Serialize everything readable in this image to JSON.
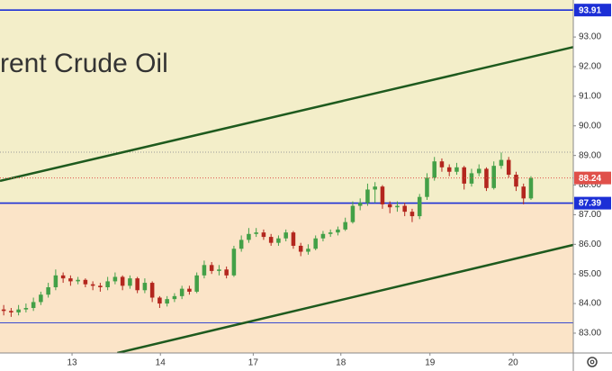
{
  "chart_data": {
    "type": "candlestick",
    "watermark": "Brent Crude Oil",
    "x": [
      0.5,
      1.5,
      2.5,
      3.5,
      4.5,
      5.5,
      6.5,
      7.5,
      8.5,
      9.5,
      10.5,
      11.5,
      12.5,
      13.5,
      14.5,
      15.5,
      16.5,
      17.5,
      18.5,
      19.5,
      20.5,
      21.5,
      22.5,
      23.5,
      24.5,
      25.5,
      26.5,
      27.5,
      28.5,
      29.5,
      30.5,
      31.5,
      32.5,
      33.5,
      34.5,
      35.5,
      36.5,
      37.5,
      38.5,
      39.5,
      40.5,
      41.5,
      42.5,
      43.5,
      44.5,
      45.5,
      46.5,
      47.5,
      48.5,
      49.5,
      50.5,
      51.5,
      52.5,
      53.5,
      54.5,
      55.5,
      56.5,
      57.5,
      58.5,
      59.5,
      60.5,
      61.5,
      62.5,
      63.5,
      64.5,
      65.5,
      66.5,
      67.5,
      68.5,
      69.5,
      70.5,
      71.5
    ],
    "open": [
      83.8,
      83.75,
      83.7,
      83.8,
      83.85,
      84.05,
      84.3,
      84.55,
      84.95,
      84.85,
      84.75,
      84.8,
      84.65,
      84.6,
      84.55,
      84.75,
      84.9,
      84.6,
      84.85,
      84.45,
      84.7,
      84.2,
      84.0,
      84.15,
      84.25,
      84.5,
      84.4,
      84.95,
      85.3,
      85.1,
      85.15,
      84.95,
      85.85,
      86.15,
      86.35,
      86.4,
      86.25,
      86.05,
      86.2,
      86.4,
      85.95,
      85.75,
      85.85,
      86.2,
      86.35,
      86.4,
      86.5,
      86.75,
      87.3,
      87.4,
      87.85,
      87.95,
      87.35,
      87.25,
      87.3,
      87.1,
      86.95,
      87.6,
      88.25,
      88.8,
      88.6,
      88.45,
      88.6,
      88.05,
      88.4,
      88.55,
      87.9,
      88.65,
      88.85,
      88.35,
      87.95,
      87.55
    ],
    "high": [
      83.95,
      83.85,
      83.95,
      84.0,
      84.2,
      84.4,
      84.7,
      85.15,
      85.05,
      84.95,
      84.9,
      84.85,
      84.75,
      84.7,
      84.9,
      85.05,
      84.95,
      84.95,
      84.9,
      84.85,
      84.75,
      84.25,
      84.25,
      84.35,
      84.6,
      84.6,
      85.05,
      85.45,
      85.4,
      85.3,
      85.25,
      85.95,
      86.3,
      86.55,
      86.55,
      86.5,
      86.35,
      86.3,
      86.5,
      86.45,
      86.05,
      86.0,
      86.3,
      86.45,
      86.5,
      86.6,
      86.9,
      87.45,
      87.55,
      88.05,
      88.1,
      88.0,
      87.45,
      87.45,
      87.4,
      87.2,
      87.7,
      88.4,
      88.95,
      88.9,
      88.7,
      88.75,
      88.65,
      88.55,
      88.7,
      88.6,
      88.8,
      89.1,
      88.95,
      88.45,
      88.05,
      88.3
    ],
    "low": [
      83.6,
      83.55,
      83.6,
      83.7,
      83.75,
      83.95,
      84.2,
      84.45,
      84.7,
      84.6,
      84.65,
      84.55,
      84.45,
      84.4,
      84.45,
      84.65,
      84.45,
      84.5,
      84.35,
      84.35,
      84.05,
      83.85,
      83.9,
      84.05,
      84.15,
      84.3,
      84.35,
      84.85,
      85.0,
      84.95,
      84.85,
      84.9,
      85.75,
      86.05,
      86.25,
      86.15,
      85.95,
      85.95,
      86.1,
      85.85,
      85.6,
      85.65,
      85.8,
      86.1,
      86.25,
      86.3,
      86.45,
      86.7,
      87.15,
      87.3,
      87.4,
      87.2,
      87.05,
      87.1,
      86.95,
      86.75,
      86.85,
      87.5,
      88.15,
      88.45,
      88.3,
      88.35,
      87.85,
      87.95,
      88.3,
      87.8,
      87.85,
      88.55,
      88.25,
      87.8,
      87.35,
      87.5
    ],
    "close": [
      83.75,
      83.7,
      83.8,
      83.85,
      84.05,
      84.3,
      84.55,
      84.95,
      84.85,
      84.75,
      84.8,
      84.65,
      84.6,
      84.55,
      84.75,
      84.9,
      84.6,
      84.85,
      84.45,
      84.7,
      84.2,
      84.0,
      84.15,
      84.25,
      84.5,
      84.4,
      84.95,
      85.3,
      85.1,
      85.15,
      84.95,
      85.85,
      86.15,
      86.35,
      86.4,
      86.25,
      86.05,
      86.2,
      86.4,
      85.95,
      85.75,
      85.85,
      86.2,
      86.35,
      86.4,
      86.5,
      86.75,
      87.3,
      87.4,
      87.85,
      87.95,
      87.35,
      87.25,
      87.3,
      87.1,
      86.95,
      87.6,
      88.25,
      88.8,
      88.6,
      88.45,
      88.6,
      88.05,
      88.4,
      88.55,
      87.9,
      88.65,
      88.85,
      88.35,
      87.95,
      87.55,
      88.24
    ],
    "up_color": "#43a047",
    "down_color": "#b3261e",
    "xlim": [
      0,
      77.2
    ],
    "xticks": [
      {
        "value": 9.7,
        "label": "13"
      },
      {
        "value": 21.6,
        "label": "14"
      },
      {
        "value": 34.1,
        "label": "17"
      },
      {
        "value": 45.9,
        "label": "18"
      },
      {
        "value": 57.9,
        "label": "19"
      },
      {
        "value": 69.1,
        "label": "20"
      }
    ],
    "ylim": [
      82.33,
      94.25
    ],
    "yticks": [
      {
        "value": 83,
        "label": "83.00"
      },
      {
        "value": 84,
        "label": "84.00"
      },
      {
        "value": 85,
        "label": "85.00"
      },
      {
        "value": 86,
        "label": "86.00"
      },
      {
        "value": 87,
        "label": "87.00"
      },
      {
        "value": 88,
        "label": "88.00"
      },
      {
        "value": 89,
        "label": "89.00"
      },
      {
        "value": 90,
        "label": "90.00"
      },
      {
        "value": 91,
        "label": "91.00"
      },
      {
        "value": 92,
        "label": "92.00"
      },
      {
        "value": 93,
        "label": "93.00"
      }
    ],
    "hlines": [
      {
        "value": 93.91,
        "color": "#1c2fd6",
        "labeled": true
      },
      {
        "value": 87.39,
        "color": "#1c2fd6",
        "labeled": true
      },
      {
        "value": 83.35,
        "color": "#3a4bd0",
        "labeled": false
      }
    ],
    "dotted_lines": [
      89.11
    ],
    "zone_colors": {
      "above": "#f3eec9",
      "below": "#fbe4c8"
    },
    "last_price_color": "#e0504a",
    "trendlines": [
      {
        "x": [
          0,
          77.2
        ],
        "y": [
          88.14,
          92.66
        ],
        "color": "#1e5a1e"
      },
      {
        "x": [
          15.8,
          77.2
        ],
        "y": [
          82.33,
          85.98
        ],
        "color": "#1e5a1e"
      }
    ]
  }
}
